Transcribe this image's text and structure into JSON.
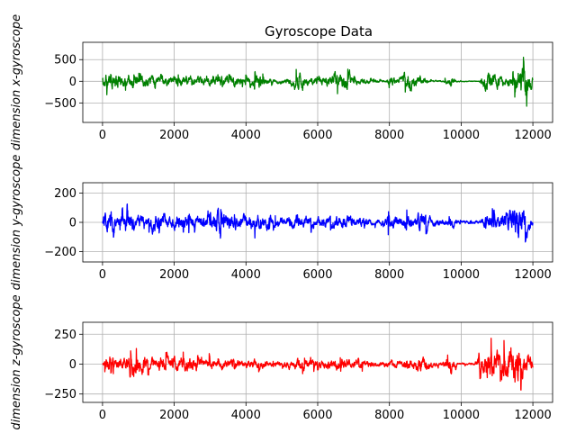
{
  "figure": {
    "title": "Gyroscope Data"
  },
  "chart_data": [
    {
      "type": "line",
      "title": "Gyroscope Data",
      "xlabel": "",
      "ylabel": "dimension x-gyroscope",
      "xlim": [
        -550,
        12550
      ],
      "ylim": [
        -950,
        900
      ],
      "xticks": [
        0,
        2000,
        4000,
        6000,
        8000,
        10000,
        12000
      ],
      "yticks": [
        -500,
        0,
        500
      ],
      "grid": true,
      "color": "#008000",
      "n_samples": 12000,
      "envelope": [
        [
          0,
          200
        ],
        [
          200,
          420
        ],
        [
          400,
          300
        ],
        [
          600,
          200
        ],
        [
          800,
          280
        ],
        [
          1000,
          250
        ],
        [
          1200,
          220
        ],
        [
          1500,
          260
        ],
        [
          1800,
          200
        ],
        [
          2000,
          220
        ],
        [
          2300,
          230
        ],
        [
          2600,
          170
        ],
        [
          3000,
          200
        ],
        [
          3300,
          230
        ],
        [
          3600,
          190
        ],
        [
          4000,
          200
        ],
        [
          4300,
          250
        ],
        [
          4500,
          220
        ],
        [
          4800,
          70
        ],
        [
          5100,
          100
        ],
        [
          5300,
          250
        ],
        [
          5500,
          420
        ],
        [
          5700,
          200
        ],
        [
          6000,
          200
        ],
        [
          6200,
          180
        ],
        [
          6500,
          260
        ],
        [
          6800,
          520
        ],
        [
          7000,
          130
        ],
        [
          7300,
          130
        ],
        [
          7600,
          70
        ],
        [
          7900,
          40
        ],
        [
          8000,
          200
        ],
        [
          8300,
          150
        ],
        [
          8500,
          360
        ],
        [
          8800,
          220
        ],
        [
          8900,
          260
        ],
        [
          9100,
          40
        ],
        [
          9500,
          40
        ],
        [
          9700,
          230
        ],
        [
          9900,
          20
        ],
        [
          10200,
          15
        ],
        [
          10500,
          20
        ],
        [
          10600,
          230
        ],
        [
          10700,
          580
        ],
        [
          10900,
          350
        ],
        [
          11100,
          200
        ],
        [
          11200,
          100
        ],
        [
          11400,
          250
        ],
        [
          11500,
          470
        ],
        [
          11600,
          560
        ],
        [
          11700,
          820
        ],
        [
          11900,
          470
        ],
        [
          12000,
          300
        ]
      ]
    },
    {
      "type": "line",
      "title": "",
      "xlabel": "",
      "ylabel": "dimension y-gyroscope",
      "xlim": [
        -550,
        12550
      ],
      "ylim": [
        -270,
        270
      ],
      "xticks": [
        0,
        2000,
        4000,
        6000,
        8000,
        10000,
        12000
      ],
      "yticks": [
        -200,
        0,
        200
      ],
      "grid": true,
      "color": "#0000ff",
      "n_samples": 12000,
      "envelope": [
        [
          0,
          70
        ],
        [
          200,
          205
        ],
        [
          400,
          60
        ],
        [
          600,
          110
        ],
        [
          700,
          180
        ],
        [
          900,
          70
        ],
        [
          1200,
          90
        ],
        [
          1500,
          120
        ],
        [
          1800,
          80
        ],
        [
          2000,
          90
        ],
        [
          2300,
          100
        ],
        [
          2600,
          70
        ],
        [
          3000,
          90
        ],
        [
          3200,
          150
        ],
        [
          3500,
          110
        ],
        [
          3800,
          80
        ],
        [
          4000,
          90
        ],
        [
          4300,
          110
        ],
        [
          4600,
          100
        ],
        [
          4800,
          50
        ],
        [
          5000,
          60
        ],
        [
          5300,
          80
        ],
        [
          5500,
          100
        ],
        [
          5800,
          80
        ],
        [
          6000,
          60
        ],
        [
          6300,
          70
        ],
        [
          6600,
          80
        ],
        [
          6900,
          80
        ],
        [
          7200,
          60
        ],
        [
          7500,
          40
        ],
        [
          7800,
          30
        ],
        [
          8000,
          100
        ],
        [
          8300,
          70
        ],
        [
          8500,
          90
        ],
        [
          8700,
          60
        ],
        [
          8900,
          140
        ],
        [
          9100,
          60
        ],
        [
          9300,
          50
        ],
        [
          9500,
          40
        ],
        [
          9700,
          80
        ],
        [
          9900,
          20
        ],
        [
          10200,
          20
        ],
        [
          10500,
          20
        ],
        [
          10700,
          90
        ],
        [
          10900,
          110
        ],
        [
          11100,
          90
        ],
        [
          11300,
          150
        ],
        [
          11500,
          240
        ],
        [
          11600,
          230
        ],
        [
          11700,
          180
        ],
        [
          11900,
          100
        ],
        [
          12000,
          60
        ]
      ]
    },
    {
      "type": "line",
      "title": "",
      "xlabel": "",
      "ylabel": "dimension z-gyroscope",
      "xlim": [
        -550,
        12550
      ],
      "ylim": [
        -320,
        350
      ],
      "xticks": [
        0,
        2000,
        4000,
        6000,
        8000,
        10000,
        12000
      ],
      "yticks": [
        -250,
        0,
        250
      ],
      "grid": true,
      "color": "#ff0000",
      "n_samples": 12000,
      "envelope": [
        [
          0,
          30
        ],
        [
          200,
          150
        ],
        [
          400,
          70
        ],
        [
          600,
          90
        ],
        [
          900,
          160
        ],
        [
          1200,
          110
        ],
        [
          1500,
          90
        ],
        [
          1800,
          120
        ],
        [
          2000,
          100
        ],
        [
          2300,
          130
        ],
        [
          2600,
          70
        ],
        [
          3000,
          90
        ],
        [
          3300,
          80
        ],
        [
          3600,
          70
        ],
        [
          4000,
          60
        ],
        [
          4300,
          80
        ],
        [
          4500,
          70
        ],
        [
          4700,
          40
        ],
        [
          5000,
          50
        ],
        [
          5300,
          60
        ],
        [
          5500,
          90
        ],
        [
          5800,
          80
        ],
        [
          6000,
          60
        ],
        [
          6300,
          70
        ],
        [
          6600,
          90
        ],
        [
          6800,
          80
        ],
        [
          7000,
          60
        ],
        [
          7300,
          60
        ],
        [
          7500,
          40
        ],
        [
          7700,
          30
        ],
        [
          8000,
          60
        ],
        [
          8300,
          50
        ],
        [
          8500,
          90
        ],
        [
          8700,
          70
        ],
        [
          8900,
          140
        ],
        [
          9100,
          50
        ],
        [
          9300,
          40
        ],
        [
          9500,
          30
        ],
        [
          9700,
          180
        ],
        [
          9900,
          20
        ],
        [
          10200,
          15
        ],
        [
          10400,
          25
        ],
        [
          10500,
          200
        ],
        [
          10600,
          100
        ],
        [
          10700,
          270
        ],
        [
          10900,
          230
        ],
        [
          11100,
          200
        ],
        [
          11300,
          250
        ],
        [
          11500,
          330
        ],
        [
          11600,
          320
        ],
        [
          11700,
          200
        ],
        [
          11900,
          130
        ],
        [
          12000,
          80
        ]
      ]
    }
  ]
}
